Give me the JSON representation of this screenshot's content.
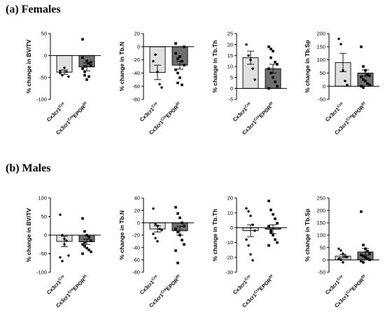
{
  "sections": [
    {
      "title": "(a) Females"
    },
    {
      "title": "(b) Males"
    }
  ],
  "chart_data": [
    {
      "type": "bar",
      "section": "(a) Females",
      "ylabel": "% change in BV/TV",
      "ylim": [
        -100,
        50
      ],
      "yticks": [
        -100,
        -50,
        0,
        50
      ],
      "categories": [
        {
          "base": "Cx3cr1",
          "sup": "Cre",
          "tail": "",
          "sup2": ""
        },
        {
          "base": "Cx3cr1",
          "sup": "Cre",
          "tail": "EPOR",
          "sup2": "f/f"
        }
      ],
      "values": [
        -38,
        -26
      ],
      "errors": [
        5,
        9
      ],
      "points": [
        [
          -35,
          -45,
          -28,
          -37,
          -48,
          -40
        ],
        [
          37,
          -45,
          -12,
          -18,
          -23,
          -30,
          -37,
          -55,
          -48,
          -15,
          -5,
          -25
        ]
      ]
    },
    {
      "type": "bar",
      "section": "(a) Females",
      "ylabel": "% change in Tb.N",
      "ylim": [
        -80,
        20
      ],
      "yticks": [
        -80,
        -60,
        -40,
        -20,
        0,
        20
      ],
      "categories": [
        {
          "base": "Cx3cr1",
          "sup": "Cre",
          "tail": "",
          "sup2": ""
        },
        {
          "base": "Cx3cr1",
          "sup": "Cre",
          "tail": "EPOR",
          "sup2": "f/f"
        }
      ],
      "values": [
        -39,
        -28
      ],
      "errors": [
        11,
        6
      ],
      "points": [
        [
          -22,
          -12,
          -38,
          -57,
          -62
        ],
        [
          5,
          -55,
          -15,
          -22,
          -28,
          -35,
          -40,
          -47,
          -58,
          0,
          -10,
          -18
        ]
      ]
    },
    {
      "type": "bar",
      "section": "(a) Females",
      "ylabel": "% change in Tb.Th",
      "ylim": [
        -5,
        25
      ],
      "yticks": [
        -5,
        0,
        5,
        10,
        15,
        20,
        25
      ],
      "categories": [
        {
          "base": "Cx3cr1",
          "sup": "Cre",
          "tail": "",
          "sup2": ""
        },
        {
          "base": "Cx3cr1",
          "sup": "Cre",
          "tail": "EPOR",
          "sup2": "f/f"
        }
      ],
      "values": [
        14,
        9
      ],
      "errors": [
        3,
        2
      ],
      "points": [
        [
          20,
          15,
          13,
          9,
          4
        ],
        [
          19,
          18,
          17,
          12,
          11,
          9,
          7,
          5,
          3,
          1,
          0,
          14
        ]
      ]
    },
    {
      "type": "bar",
      "section": "(a) Females",
      "ylabel": "% change in Tb.Sp",
      "ylim": [
        -50,
        200
      ],
      "yticks": [
        -50,
        0,
        50,
        100,
        150,
        200
      ],
      "categories": [
        {
          "base": "Cx3cr1",
          "sup": "Cre",
          "tail": "",
          "sup2": ""
        },
        {
          "base": "Cx3cr1",
          "sup": "Cre",
          "tail": "EPOR",
          "sup2": "f/f"
        }
      ],
      "values": [
        90,
        50
      ],
      "errors": [
        35,
        12
      ],
      "points": [
        [
          180,
          160,
          60,
          20,
          5
        ],
        [
          150,
          75,
          60,
          45,
          40,
          35,
          25,
          20,
          10,
          5,
          0,
          -5
        ]
      ]
    },
    {
      "type": "bar",
      "section": "(b) Males",
      "ylabel": "% change in BV/TV",
      "ylim": [
        -100,
        100
      ],
      "yticks": [
        -100,
        -50,
        0,
        50,
        100
      ],
      "categories": [
        {
          "base": "Cx3cr1",
          "sup": "Cre",
          "tail": "",
          "sup2": ""
        },
        {
          "base": "Cx3cr1",
          "sup": "Cre",
          "tail": "EPOR",
          "sup2": "f/f"
        }
      ],
      "values": [
        -17,
        -18
      ],
      "errors": [
        14,
        7
      ],
      "points": [
        [
          55,
          0,
          -10,
          -15,
          -55,
          -60,
          -70,
          -25
        ],
        [
          45,
          10,
          0,
          -5,
          -15,
          -25,
          -30,
          -35,
          -40,
          -45,
          -50,
          -20
        ]
      ]
    },
    {
      "type": "bar",
      "section": "(b) Males",
      "ylabel": "% change in Tb.N",
      "ylim": [
        -80,
        40
      ],
      "yticks": [
        -80,
        -60,
        -40,
        -20,
        0,
        20,
        40
      ],
      "categories": [
        {
          "base": "Cx3cr1",
          "sup": "Cre",
          "tail": "",
          "sup2": ""
        },
        {
          "base": "Cx3cr1",
          "sup": "Cre",
          "tail": "EPOR",
          "sup2": "f/f"
        }
      ],
      "values": [
        -10,
        -13
      ],
      "errors": [
        5,
        7
      ],
      "points": [
        [
          23,
          -2,
          -5,
          -10,
          -12,
          -18,
          -25,
          -30
        ],
        [
          25,
          15,
          8,
          0,
          -5,
          -10,
          -15,
          -20,
          -28,
          -35,
          -45,
          -65
        ]
      ]
    },
    {
      "type": "bar",
      "section": "(b) Males",
      "ylabel": "% change in Tb.Th",
      "ylim": [
        -30,
        20
      ],
      "yticks": [
        -30,
        -20,
        -10,
        0,
        10,
        20
      ],
      "categories": [
        {
          "base": "Cx3cr1",
          "sup": "Cre",
          "tail": "",
          "sup2": ""
        },
        {
          "base": "Cx3cr1",
          "sup": "Cre",
          "tail": "EPOR",
          "sup2": "f/f"
        }
      ],
      "values": [
        -2,
        -1
      ],
      "errors": [
        4,
        3
      ],
      "points": [
        [
          13,
          11,
          8,
          2,
          -2,
          -8,
          -12,
          -18,
          -22
        ],
        [
          18,
          12,
          9,
          6,
          3,
          1,
          -2,
          -5,
          -8,
          -10,
          -12,
          -3
        ]
      ]
    },
    {
      "type": "bar",
      "section": "(b) Males",
      "ylabel": "% change in Tb.Sp",
      "ylim": [
        -50,
        250
      ],
      "yticks": [
        -50,
        0,
        50,
        100,
        150,
        200,
        250
      ],
      "categories": [
        {
          "base": "Cx3cr1",
          "sup": "Cre",
          "tail": "",
          "sup2": ""
        },
        {
          "base": "Cx3cr1",
          "sup": "Cre",
          "tail": "EPOR",
          "sup2": "f/f"
        }
      ],
      "values": [
        15,
        32
      ],
      "errors": [
        7,
        14
      ],
      "points": [
        [
          45,
          38,
          25,
          15,
          10,
          5,
          0,
          -10
        ],
        [
          195,
          60,
          45,
          35,
          25,
          20,
          15,
          10,
          5,
          0,
          -5,
          -10
        ]
      ]
    }
  ]
}
